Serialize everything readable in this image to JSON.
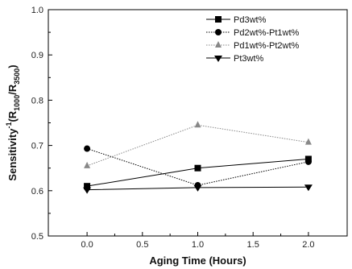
{
  "chart_data": {
    "type": "line",
    "title": "",
    "xlabel": "Aging Time (Hours)",
    "ylabel": {
      "main": "Sensitivity",
      "sup": "-1",
      "open": "(R",
      "sub1": "1000",
      "mid": "/R",
      "sub2": "3500",
      "close": ")"
    },
    "xlim": [
      -0.35,
      2.35
    ],
    "ylim": [
      0.5,
      1.0
    ],
    "xticks": [
      "0.0",
      "0.5",
      "1.0",
      "1.5",
      "2.0"
    ],
    "yticks": [
      "0.5",
      "0.6",
      "0.7",
      "0.8",
      "0.9",
      "1.0"
    ],
    "legend_position": "top-right",
    "series": [
      {
        "name": "Pd3wt%",
        "x": [
          0,
          1,
          2
        ],
        "y": [
          0.61,
          0.65,
          0.67
        ],
        "color": "#000000",
        "marker": "square",
        "line": "solid"
      },
      {
        "name": "Pd2wt%-Pt1wt%",
        "x": [
          0,
          1,
          2
        ],
        "y": [
          0.693,
          0.612,
          0.664
        ],
        "color": "#000000",
        "marker": "circle",
        "line": "dotted"
      },
      {
        "name": "Pd1wt%-Pt2wt%",
        "x": [
          0,
          1,
          2
        ],
        "y": [
          0.655,
          0.745,
          0.707
        ],
        "color": "#888888",
        "marker": "triangle-up",
        "line": "dotted"
      },
      {
        "name": "Pt3wt%",
        "x": [
          0,
          1,
          2
        ],
        "y": [
          0.602,
          0.607,
          0.608
        ],
        "color": "#000000",
        "marker": "triangle-down",
        "line": "solid"
      }
    ]
  }
}
